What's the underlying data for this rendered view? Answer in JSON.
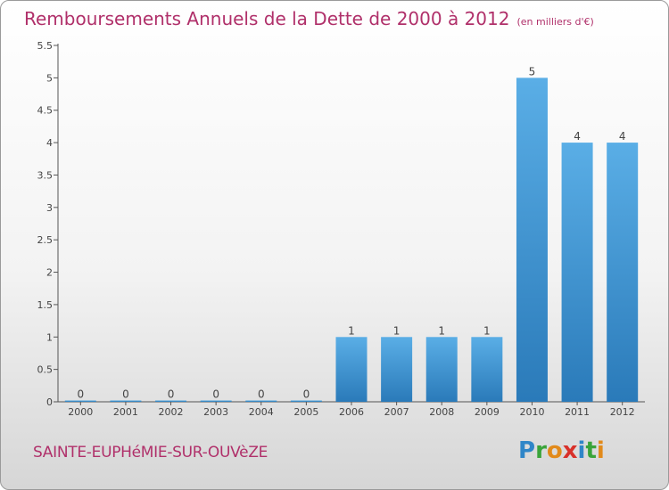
{
  "header": {
    "title": "Remboursements Annuels de la Dette de 2000 à 2012",
    "subtitle": "(en milliers d'€)"
  },
  "footer": {
    "commune": "SAINTE-EUPHéMIE-SUR-OUVèZE",
    "logo_letters": [
      {
        "char": "P",
        "color": "#2f86c8"
      },
      {
        "char": "r",
        "color": "#3aa43a"
      },
      {
        "char": "o",
        "color": "#e28a1a"
      },
      {
        "char": "x",
        "color": "#d8312a"
      },
      {
        "char": "i",
        "color": "#2f86c8"
      },
      {
        "char": "t",
        "color": "#3aa43a"
      },
      {
        "char": "i",
        "color": "#e28a1a"
      }
    ]
  },
  "colors": {
    "title": "#b0306a",
    "bar_light": "#5aaee6",
    "bar_dark": "#2a7ab9"
  },
  "chart_data": {
    "type": "bar",
    "title": "Remboursements Annuels de la Dette de 2000 à 2012",
    "subtitle": "(en milliers d'€)",
    "xlabel": "",
    "ylabel": "",
    "categories": [
      "2000",
      "2001",
      "2002",
      "2003",
      "2004",
      "2005",
      "2006",
      "2007",
      "2008",
      "2009",
      "2010",
      "2011",
      "2012"
    ],
    "values": [
      0,
      0,
      0,
      0,
      0,
      0,
      1,
      1,
      1,
      1,
      5,
      4,
      4
    ],
    "data_labels": [
      "0",
      "0",
      "0",
      "0",
      "0",
      "0",
      "1",
      "1",
      "1",
      "1",
      "5",
      "4",
      "4"
    ],
    "ylim": [
      0,
      5.5
    ],
    "yticks": [
      0,
      0.5,
      1,
      1.5,
      2,
      2.5,
      3,
      3.5,
      4,
      4.5,
      5,
      5.5
    ],
    "ytick_labels": [
      "0",
      "0.5",
      "1",
      "1.5",
      "2",
      "2.5",
      "3",
      "3.5",
      "4",
      "4.5",
      "5",
      "5.5"
    ],
    "grid": false,
    "legend": "none"
  }
}
